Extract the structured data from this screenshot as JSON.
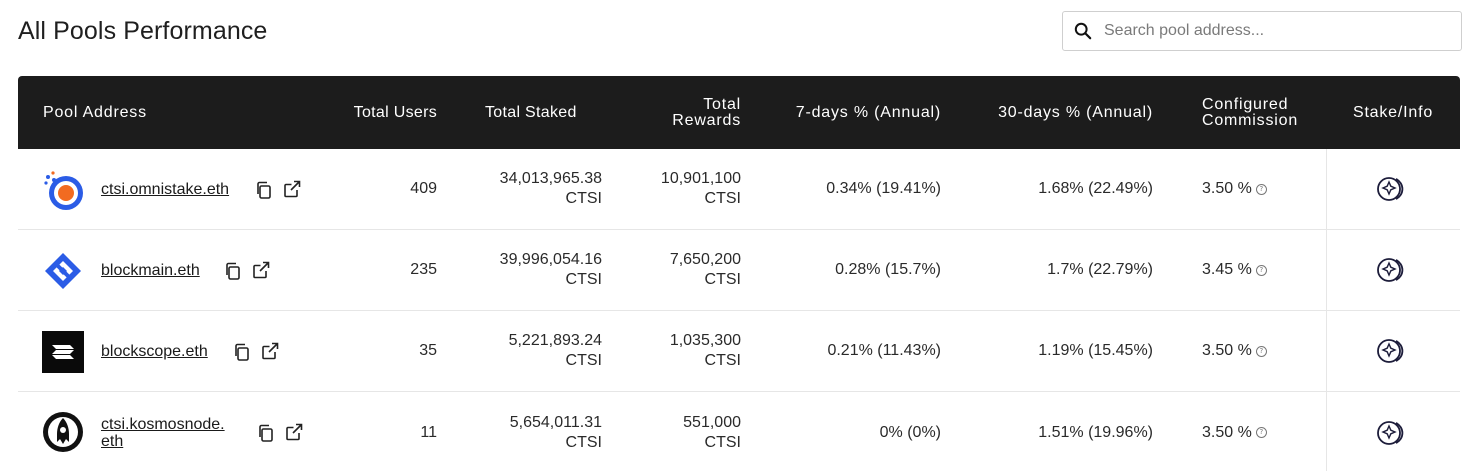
{
  "page": {
    "title": "All Pools Performance"
  },
  "search": {
    "placeholder": "Search pool address..."
  },
  "table": {
    "headers": {
      "pool_address": "Pool Address",
      "total_users": "Total Users",
      "total_staked": "Total Staked",
      "total_rewards_1": "Total",
      "total_rewards_2": "Rewards",
      "seven_days": "7-days % (Annual)",
      "thirty_days": "30-days % (Annual)",
      "commission_1": "Configured",
      "commission_2": "Commission",
      "stake_info": "Stake/Info"
    },
    "rows": [
      {
        "pool": "ctsi.omnistake.eth",
        "users": "409",
        "staked": "34,013,965.38",
        "staked_unit": "CTSI",
        "rewards": "10,901,100",
        "rewards_unit": "CTSI",
        "seven": "0.34% (19.41%)",
        "thirty": "1.68% (22.49%)",
        "commission": "3.50 %",
        "logo": "omnistake-logo"
      },
      {
        "pool": "blockmain.eth",
        "users": "235",
        "staked": "39,996,054.16",
        "staked_unit": "CTSI",
        "rewards": "7,650,200",
        "rewards_unit": "CTSI",
        "seven": "0.28% (15.7%)",
        "thirty": "1.7% (22.79%)",
        "commission": "3.45 %",
        "logo": "blockmain-logo"
      },
      {
        "pool": "blockscope.eth",
        "users": "35",
        "staked": "5,221,893.24",
        "staked_unit": "CTSI",
        "rewards": "1,035,300",
        "rewards_unit": "CTSI",
        "seven": "0.21% (11.43%)",
        "thirty": "1.19% (15.45%)",
        "commission": "3.50 %",
        "logo": "blockscope-logo"
      },
      {
        "pool": "ctsi.kosmosnode.eth",
        "pool_line1": "ctsi.kosmosnode.",
        "pool_line2": "eth",
        "users": "11",
        "staked": "5,654,011.31",
        "staked_unit": "CTSI",
        "rewards": "551,000",
        "rewards_unit": "CTSI",
        "seven": "0% (0%)",
        "thirty": "1.51% (19.96%)",
        "commission": "3.50 %",
        "logo": "kosmosnode-logo"
      }
    ]
  },
  "colors": {
    "header_bg": "#1c1c1c",
    "border": "#e6e6e6",
    "accent_blue": "#2b5ce6",
    "accent_orange": "#f26b21"
  },
  "icons": {
    "search": "search-icon",
    "copy": "copy-icon",
    "external": "external-link-icon",
    "stake": "stake-icon",
    "info": "info-icon"
  }
}
